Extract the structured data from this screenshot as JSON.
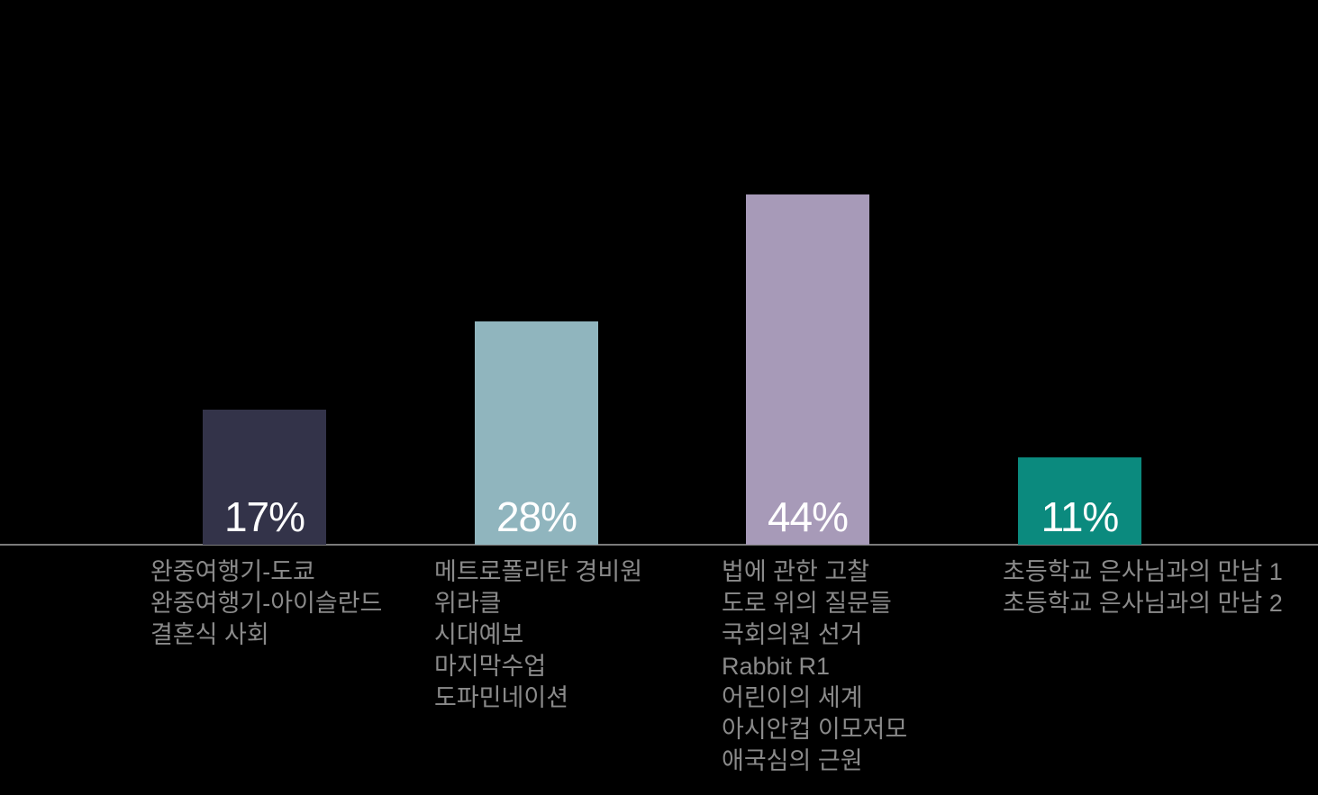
{
  "page": {
    "background": "#000000"
  },
  "chart_data": {
    "type": "bar",
    "title": "",
    "xlabel": "",
    "ylabel": "",
    "unit": "%",
    "ylim": [
      0,
      50
    ],
    "grid": false,
    "legend": "none",
    "value_labels_position": "inside-bottom",
    "axis_line_color": "#7b7b7b",
    "category_label_color": "#8a8a8a",
    "value_label_color": "#ffffff",
    "bars": [
      {
        "value": 17,
        "value_label": "17%",
        "color": "#333349",
        "items": [
          "완중여행기-도쿄",
          "완중여행기-아이슬란드",
          "결혼식 사회"
        ]
      },
      {
        "value": 28,
        "value_label": "28%",
        "color": "#90b5be",
        "items": [
          "메트로폴리탄 경비원",
          "위라클",
          "시대예보",
          "마지막수업",
          "도파민네이션"
        ]
      },
      {
        "value": 44,
        "value_label": "44%",
        "color": "#a79ab8",
        "items": [
          "법에 관한 고찰",
          "도로 위의 질문들",
          "국회의원 선거",
          "Rabbit R1",
          "어린이의 세계",
          "아시안컵 이모저모",
          "애국심의 근원"
        ]
      },
      {
        "value": 11,
        "value_label": "11%",
        "color": "#0b8a7e",
        "items": [
          "초등학교 은사님과의 만남 1",
          "초등학교 은사님과의 만남 2"
        ]
      }
    ]
  }
}
